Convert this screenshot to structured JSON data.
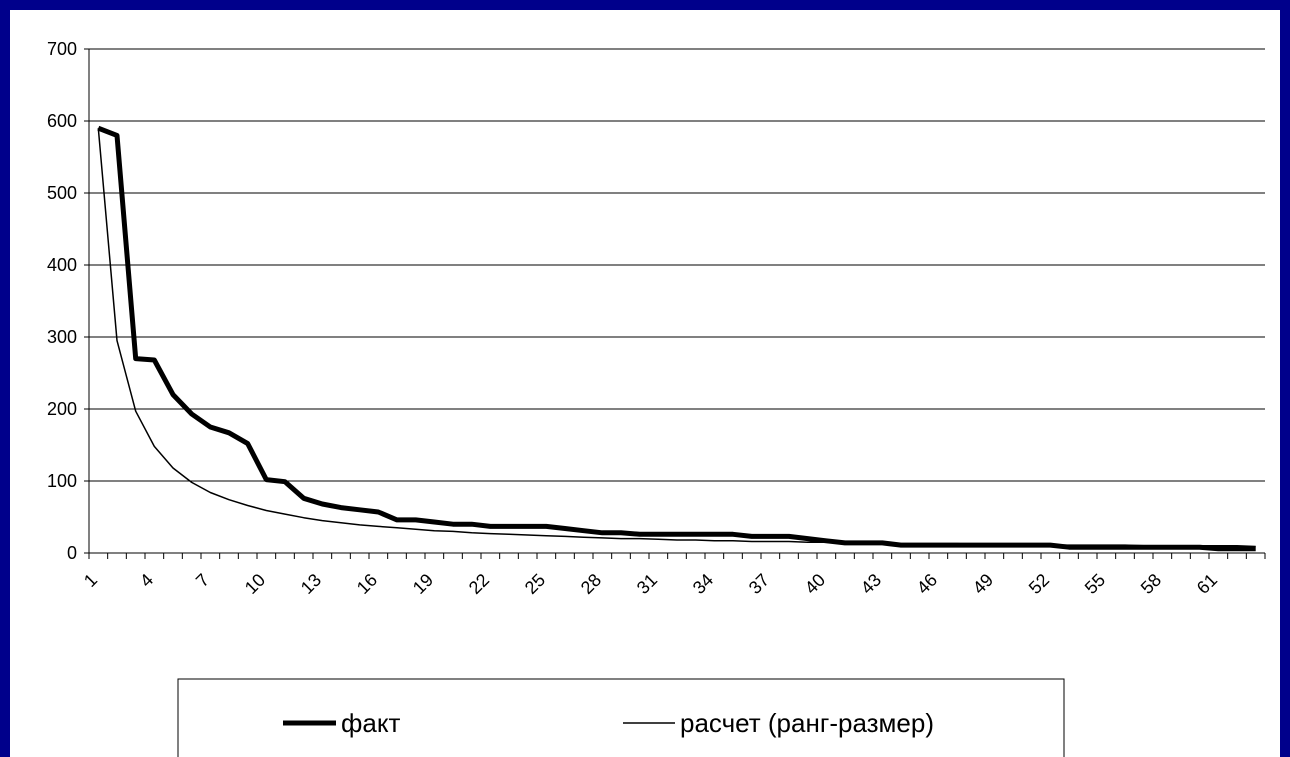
{
  "chart_data": {
    "type": "line",
    "title": "",
    "xlabel": "",
    "ylabel": "",
    "ylim": [
      0,
      700
    ],
    "y_ticks": [
      0,
      100,
      200,
      300,
      400,
      500,
      600,
      700
    ],
    "x_ticks": [
      1,
      4,
      7,
      10,
      13,
      16,
      19,
      22,
      25,
      28,
      31,
      34,
      37,
      40,
      43,
      46,
      49,
      52,
      55,
      58,
      61
    ],
    "x": [
      1,
      2,
      3,
      4,
      5,
      6,
      7,
      8,
      9,
      10,
      11,
      12,
      13,
      14,
      15,
      16,
      17,
      18,
      19,
      20,
      21,
      22,
      23,
      24,
      25,
      26,
      27,
      28,
      29,
      30,
      31,
      32,
      33,
      34,
      35,
      36,
      37,
      38,
      39,
      40,
      41,
      42,
      43,
      44,
      45,
      46,
      47,
      48,
      49,
      50,
      51,
      52,
      53,
      54,
      55,
      56,
      57,
      58,
      59,
      60,
      61,
      62,
      63
    ],
    "grid": "horizontal",
    "legend_position": "bottom",
    "series": [
      {
        "name": "факт",
        "color": "#000000",
        "style": "thick",
        "values": [
          590,
          580,
          270,
          268,
          220,
          193,
          175,
          167,
          152,
          102,
          99,
          76,
          68,
          63,
          60,
          57,
          46,
          46,
          43,
          40,
          40,
          37,
          37,
          37,
          37,
          34,
          31,
          28,
          28,
          26,
          26,
          26,
          26,
          26,
          26,
          23,
          23,
          23,
          20,
          17,
          14,
          14,
          14,
          11,
          11,
          11,
          11,
          11,
          11,
          11,
          11,
          11,
          8,
          8,
          8,
          8,
          8,
          8,
          8,
          8,
          6,
          6,
          6
        ]
      },
      {
        "name": "расчет (ранг-размер)",
        "color": "#000000",
        "style": "thin",
        "values": [
          590,
          295,
          197,
          148,
          118,
          98,
          84,
          74,
          66,
          59,
          54,
          49,
          45,
          42,
          39,
          37,
          35,
          33,
          31,
          30,
          28,
          27,
          26,
          25,
          24,
          23,
          22,
          21,
          20,
          20,
          19,
          18,
          18,
          17,
          17,
          16,
          16,
          16,
          15,
          15,
          14,
          14,
          14,
          13,
          13,
          13,
          13,
          12,
          12,
          12,
          12,
          11,
          11,
          11,
          11,
          11,
          10,
          10,
          10,
          10,
          10,
          10,
          9
        ]
      }
    ]
  }
}
